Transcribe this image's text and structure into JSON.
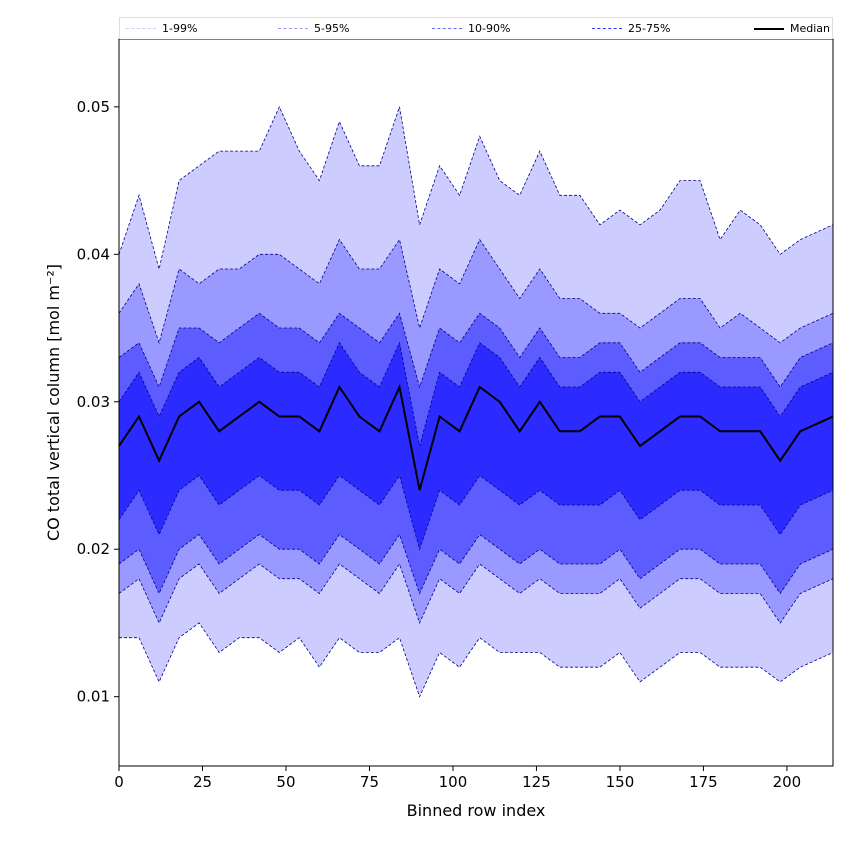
{
  "chart_data": {
    "type": "area",
    "title": "",
    "xlabel": "Binned row index",
    "ylabel": "CO total vertical column [mol m⁻²]",
    "xlim": [
      0,
      213.8
    ],
    "ylim": [
      0.0053,
      0.0546
    ],
    "xticks": [
      0,
      25,
      50,
      75,
      100,
      125,
      150,
      175,
      200
    ],
    "yticks": [
      0.01,
      0.02,
      0.03,
      0.04,
      0.05
    ],
    "ytick_labels": [
      "0.01",
      "0.02",
      "0.03",
      "0.04",
      "0.05"
    ],
    "legend_position": "top",
    "x": [
      0,
      6,
      12,
      18,
      24,
      30,
      36,
      42,
      48,
      54,
      60,
      66,
      72,
      78,
      84,
      90,
      96,
      102,
      108,
      114,
      120,
      126,
      132,
      138,
      144,
      150,
      156,
      162,
      168,
      174,
      180,
      186,
      192,
      198,
      204,
      210
    ],
    "percentiles": {
      "p1": [
        0.014,
        0.014,
        0.011,
        0.014,
        0.015,
        0.013,
        0.014,
        0.014,
        0.013,
        0.014,
        0.012,
        0.014,
        0.013,
        0.013,
        0.014,
        0.01,
        0.013,
        0.012,
        0.014,
        0.013,
        0.013,
        0.013,
        0.012,
        0.012,
        0.012,
        0.013,
        0.011,
        0.012,
        0.013,
        0.013,
        0.012,
        0.012,
        0.012,
        0.011,
        0.012,
        0.013
      ],
      "p5": [
        0.017,
        0.018,
        0.015,
        0.018,
        0.019,
        0.017,
        0.018,
        0.019,
        0.018,
        0.018,
        0.017,
        0.019,
        0.018,
        0.017,
        0.019,
        0.015,
        0.018,
        0.017,
        0.019,
        0.018,
        0.017,
        0.018,
        0.017,
        0.017,
        0.017,
        0.018,
        0.016,
        0.017,
        0.018,
        0.018,
        0.017,
        0.017,
        0.017,
        0.015,
        0.017,
        0.018
      ],
      "p10": [
        0.019,
        0.02,
        0.017,
        0.02,
        0.021,
        0.019,
        0.02,
        0.021,
        0.02,
        0.02,
        0.019,
        0.021,
        0.02,
        0.019,
        0.021,
        0.017,
        0.02,
        0.019,
        0.021,
        0.02,
        0.019,
        0.02,
        0.019,
        0.019,
        0.019,
        0.02,
        0.018,
        0.019,
        0.02,
        0.02,
        0.019,
        0.019,
        0.019,
        0.017,
        0.019,
        0.02
      ],
      "p25": [
        0.022,
        0.024,
        0.021,
        0.024,
        0.025,
        0.023,
        0.024,
        0.025,
        0.024,
        0.024,
        0.023,
        0.025,
        0.024,
        0.023,
        0.025,
        0.02,
        0.024,
        0.023,
        0.025,
        0.024,
        0.023,
        0.024,
        0.023,
        0.023,
        0.023,
        0.024,
        0.022,
        0.023,
        0.024,
        0.024,
        0.023,
        0.023,
        0.023,
        0.021,
        0.023,
        0.024
      ],
      "p50": [
        0.027,
        0.029,
        0.026,
        0.029,
        0.03,
        0.028,
        0.029,
        0.03,
        0.029,
        0.029,
        0.028,
        0.031,
        0.029,
        0.028,
        0.031,
        0.024,
        0.029,
        0.028,
        0.031,
        0.03,
        0.028,
        0.03,
        0.028,
        0.028,
        0.029,
        0.029,
        0.027,
        0.028,
        0.029,
        0.029,
        0.028,
        0.028,
        0.028,
        0.026,
        0.028,
        0.029
      ],
      "p75": [
        0.03,
        0.032,
        0.029,
        0.032,
        0.033,
        0.031,
        0.032,
        0.033,
        0.032,
        0.032,
        0.031,
        0.034,
        0.032,
        0.031,
        0.034,
        0.027,
        0.032,
        0.031,
        0.034,
        0.033,
        0.031,
        0.033,
        0.031,
        0.031,
        0.032,
        0.032,
        0.03,
        0.031,
        0.032,
        0.032,
        0.031,
        0.031,
        0.031,
        0.029,
        0.031,
        0.032
      ],
      "p90": [
        0.033,
        0.034,
        0.031,
        0.035,
        0.035,
        0.034,
        0.035,
        0.036,
        0.035,
        0.035,
        0.034,
        0.036,
        0.035,
        0.034,
        0.036,
        0.031,
        0.035,
        0.034,
        0.036,
        0.035,
        0.033,
        0.035,
        0.033,
        0.033,
        0.034,
        0.034,
        0.032,
        0.033,
        0.034,
        0.034,
        0.033,
        0.033,
        0.033,
        0.031,
        0.033,
        0.034
      ],
      "p95": [
        0.036,
        0.038,
        0.034,
        0.039,
        0.038,
        0.039,
        0.039,
        0.04,
        0.04,
        0.039,
        0.038,
        0.041,
        0.039,
        0.039,
        0.041,
        0.035,
        0.039,
        0.038,
        0.041,
        0.039,
        0.037,
        0.039,
        0.037,
        0.037,
        0.036,
        0.036,
        0.035,
        0.036,
        0.037,
        0.037,
        0.035,
        0.036,
        0.035,
        0.034,
        0.035,
        0.036
      ],
      "p99": [
        0.04,
        0.044,
        0.039,
        0.045,
        0.046,
        0.047,
        0.047,
        0.047,
        0.05,
        0.047,
        0.045,
        0.049,
        0.046,
        0.046,
        0.05,
        0.042,
        0.046,
        0.044,
        0.048,
        0.045,
        0.044,
        0.047,
        0.044,
        0.044,
        0.042,
        0.043,
        0.042,
        0.043,
        0.045,
        0.045,
        0.041,
        0.043,
        0.042,
        0.04,
        0.041,
        0.042
      ]
    },
    "bands": [
      {
        "name": "1-99%",
        "lo": "p1",
        "hi": "p99",
        "fill": "#ccccff",
        "line": "#ccccff"
      },
      {
        "name": "5-95%",
        "lo": "p5",
        "hi": "p95",
        "fill": "#9999ff",
        "line": "#9999ff"
      },
      {
        "name": "10-90%",
        "lo": "p10",
        "hi": "p90",
        "fill": "#5c5cff",
        "line": "#6666ff"
      },
      {
        "name": "25-75%",
        "lo": "p25",
        "hi": "p75",
        "fill": "#2b2bff",
        "line": "#3333ff"
      }
    ],
    "median": {
      "name": "Median",
      "key": "p50",
      "color": "#000000"
    }
  }
}
